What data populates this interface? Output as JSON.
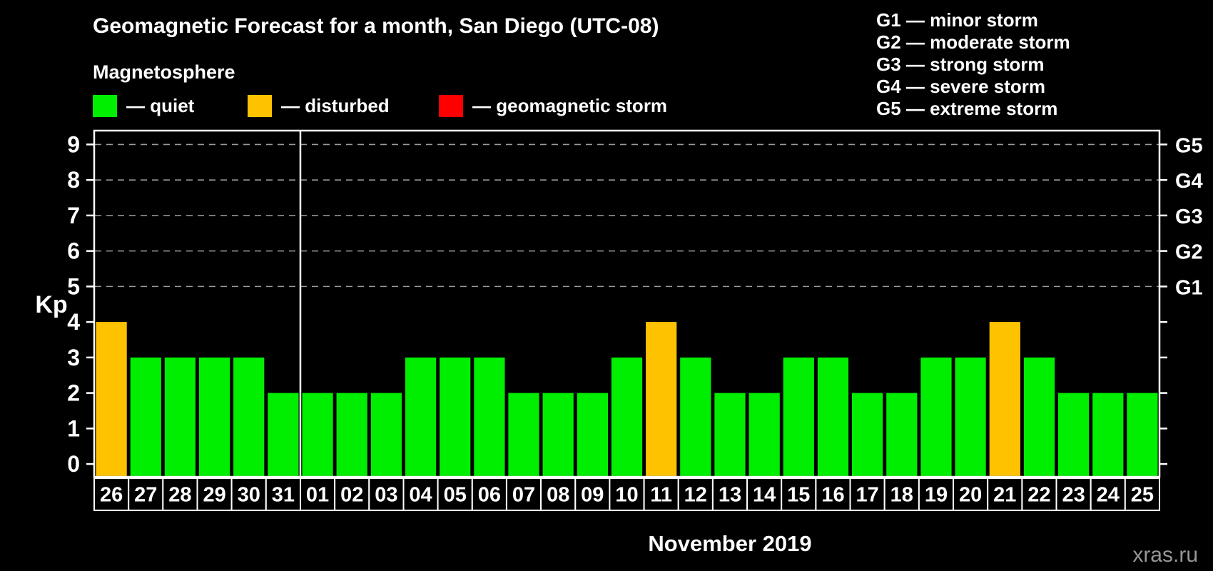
{
  "header": {
    "title": "Geomagnetic Forecast for a month, San Diego (UTC-08)"
  },
  "legend": {
    "title": "Magnetosphere",
    "items": [
      {
        "key": "quiet",
        "label": "— quiet",
        "color": "#00ee00"
      },
      {
        "key": "disturbed",
        "label": "— disturbed",
        "color": "#ffc200"
      },
      {
        "key": "storm",
        "label": "— geomagnetic storm",
        "color": "#ff0000"
      }
    ]
  },
  "g_legend": {
    "items": [
      "G1 — minor storm",
      "G2 — moderate storm",
      "G3 — strong storm",
      "G4 — severe storm",
      "G5 — extreme storm"
    ]
  },
  "watermark": "xras.ru",
  "chart_data": {
    "type": "bar",
    "title": "Geomagnetic Forecast for a month, San Diego (UTC-08)",
    "ylabel": "Kp",
    "xlabel": "November 2019",
    "categories": [
      "26",
      "27",
      "28",
      "29",
      "30",
      "31",
      "01",
      "02",
      "03",
      "04",
      "05",
      "06",
      "07",
      "08",
      "09",
      "10",
      "11",
      "12",
      "13",
      "14",
      "15",
      "16",
      "17",
      "18",
      "19",
      "20",
      "21",
      "22",
      "23",
      "24",
      "25"
    ],
    "values": [
      4,
      3,
      3,
      3,
      3,
      2,
      2,
      2,
      2,
      3,
      3,
      3,
      2,
      2,
      2,
      3,
      4,
      3,
      2,
      2,
      3,
      3,
      2,
      2,
      3,
      3,
      4,
      3,
      2,
      2,
      2
    ],
    "ylim": [
      0,
      9
    ],
    "yticks": [
      0,
      1,
      2,
      3,
      4,
      5,
      6,
      7,
      8,
      9
    ],
    "grid_levels": [
      5,
      6,
      7,
      8,
      9
    ],
    "grid_style": "dashed",
    "right_axis_labels": [
      {
        "kp": 5,
        "label": "G1"
      },
      {
        "kp": 6,
        "label": "G2"
      },
      {
        "kp": 7,
        "label": "G3"
      },
      {
        "kp": 8,
        "label": "G4"
      },
      {
        "kp": 9,
        "label": "G5"
      }
    ],
    "month_separator_after_index": 5,
    "status_colors": {
      "quiet": "#00ee00",
      "disturbed": "#ffc200",
      "storm": "#ff0000"
    },
    "status_thresholds": {
      "disturbed_at": 4,
      "storm_at": 5
    },
    "axis_color": "#ffffff",
    "grid_color": "#9b9b9b",
    "background": "#000000"
  }
}
